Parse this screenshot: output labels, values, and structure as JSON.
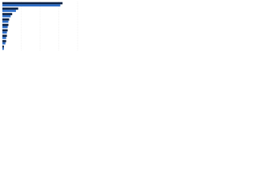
{
  "chart_data": {
    "type": "bar",
    "orientation": "horizontal",
    "categories": [
      null,
      null,
      null,
      null,
      null,
      null,
      null,
      null,
      null
    ],
    "series": [
      {
        "color": "#0d2346",
        "values": [
          80,
          21,
          13,
          9,
          8,
          7,
          6,
          5,
          2
        ]
      },
      {
        "color": "#2e6fc9",
        "values": [
          77,
          18,
          11,
          8,
          7,
          6,
          5,
          4,
          2
        ]
      }
    ],
    "xlim": [
      0,
      100
    ],
    "xticks": [
      0,
      25,
      50,
      75,
      100
    ],
    "grid": true
  }
}
